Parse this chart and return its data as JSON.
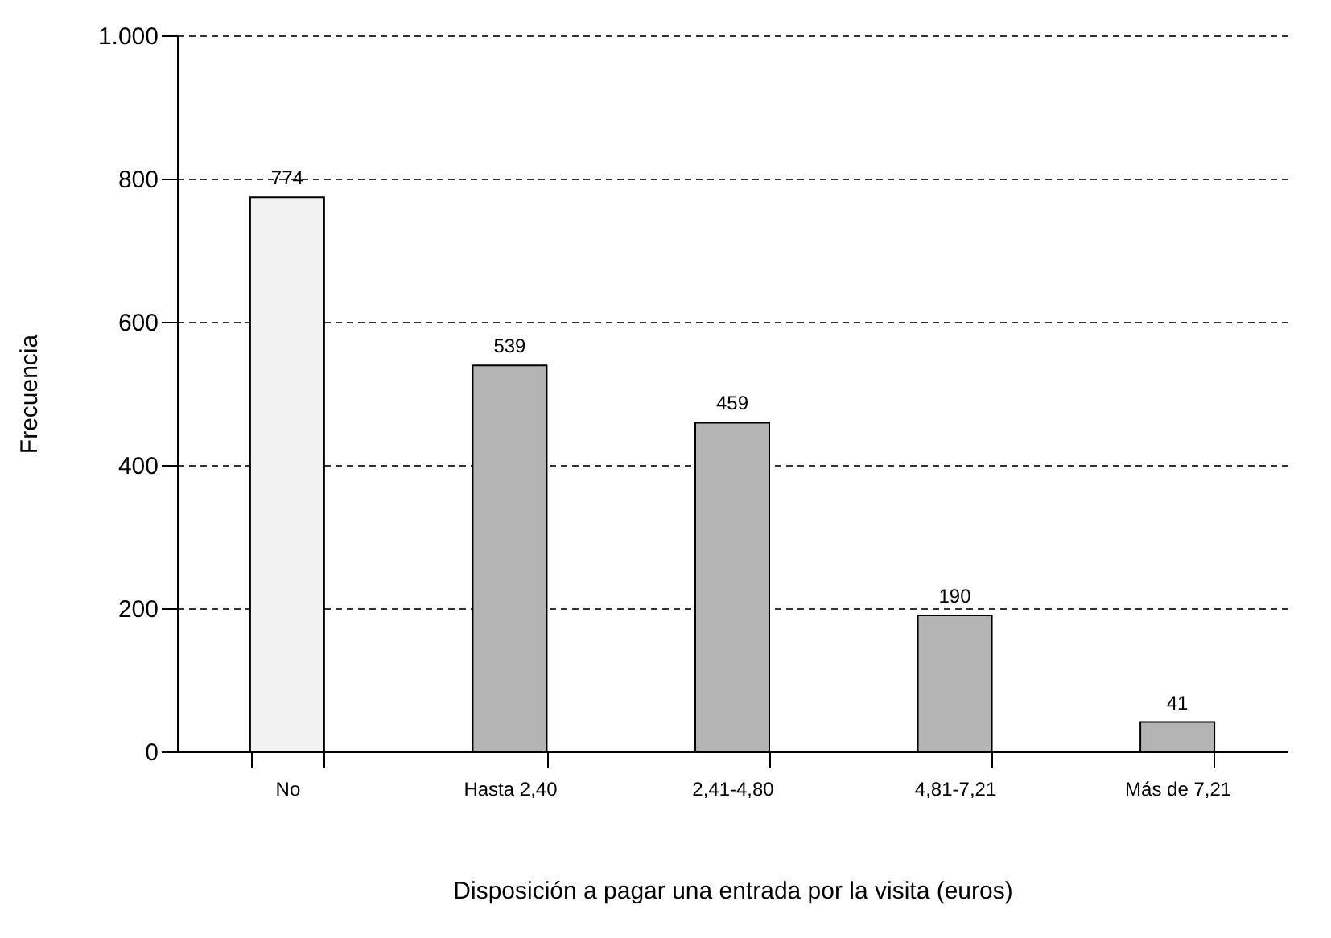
{
  "chart_data": {
    "type": "bar",
    "xlabel": "Disposición a pagar una entrada por la visita (euros)",
    "ylabel": "Frecuencia",
    "categories": [
      "No",
      "Hasta 2,40",
      "2,41-4,80",
      "4,81-7,21",
      "Más de 7,21"
    ],
    "values": [
      774,
      539,
      459,
      190,
      41
    ],
    "colors": [
      "#f2f2f2",
      "#b4b4b4",
      "#b4b4b4",
      "#b4b4b4",
      "#b4b4b4"
    ],
    "ylim": [
      0,
      1000
    ],
    "yticks": [
      0,
      200,
      400,
      600,
      800,
      {
        "value": 1000,
        "label": "1.000"
      }
    ],
    "grid": "y",
    "data_labels": true
  }
}
